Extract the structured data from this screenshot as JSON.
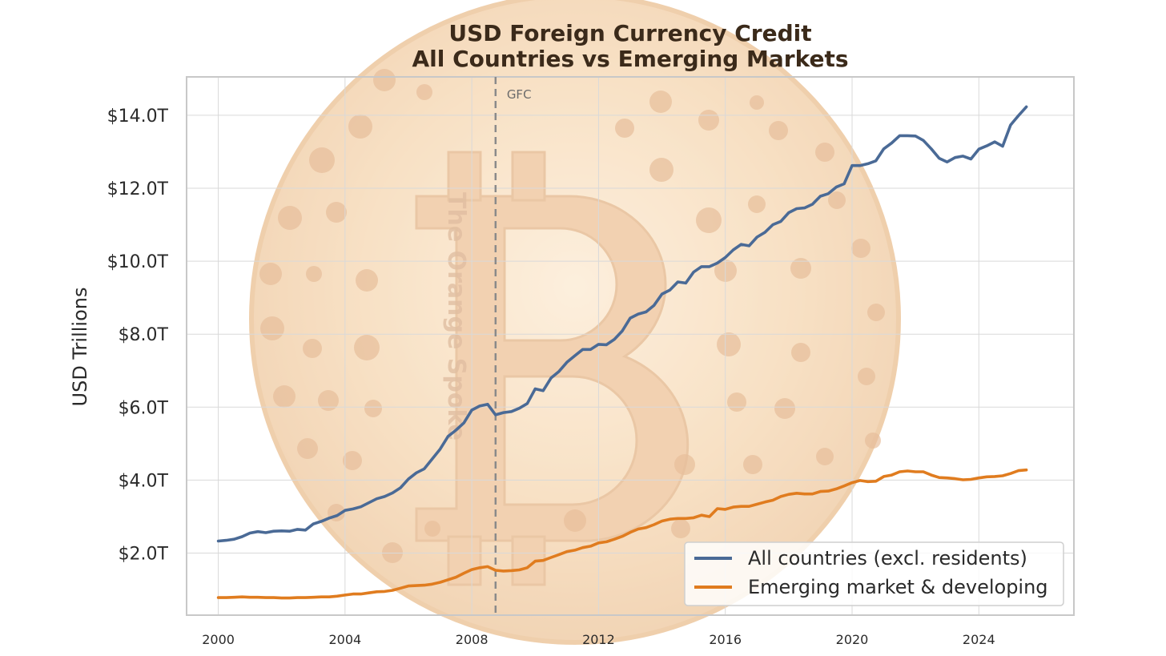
{
  "chart_data": {
    "type": "line",
    "title": "USD Foreign Currency Credit",
    "subtitle": "All Countries vs Emerging Markets",
    "xlabel": "",
    "ylabel": "USD Trillions",
    "xlim": [
      1999.0,
      2027.0
    ],
    "ylim": [
      0.3,
      15.05
    ],
    "grid": true,
    "legend_position": "bottom-right",
    "x_ticks": [
      "2000",
      "2004",
      "2008",
      "2012",
      "2016",
      "2020",
      "2024"
    ],
    "y_ticks": [
      "$2.0T",
      "$4.0T",
      "$6.0T",
      "$8.0T",
      "$10.0T",
      "$12.0T",
      "$14.0T"
    ],
    "annotations": [
      {
        "text": "GFC",
        "x": 2008.75
      }
    ],
    "watermark": "The Orange Spoke",
    "series": [
      {
        "name": "All countries (excl. residents)",
        "color": "#4a6a96",
        "points": [
          [
            2000.0,
            2.33
          ],
          [
            2000.25,
            2.35
          ],
          [
            2000.5,
            2.38
          ],
          [
            2000.75,
            2.45
          ],
          [
            2001.0,
            2.55
          ],
          [
            2001.25,
            2.59
          ],
          [
            2001.5,
            2.56
          ],
          [
            2001.75,
            2.6
          ],
          [
            2002.0,
            2.61
          ],
          [
            2002.25,
            2.6
          ],
          [
            2002.5,
            2.65
          ],
          [
            2002.75,
            2.63
          ],
          [
            2003.0,
            2.8
          ],
          [
            2003.25,
            2.87
          ],
          [
            2003.5,
            2.96
          ],
          [
            2003.75,
            3.03
          ],
          [
            2004.0,
            3.17
          ],
          [
            2004.25,
            3.21
          ],
          [
            2004.5,
            3.27
          ],
          [
            2004.75,
            3.38
          ],
          [
            2005.0,
            3.49
          ],
          [
            2005.25,
            3.55
          ],
          [
            2005.5,
            3.65
          ],
          [
            2005.75,
            3.79
          ],
          [
            2006.0,
            4.03
          ],
          [
            2006.25,
            4.2
          ],
          [
            2006.5,
            4.31
          ],
          [
            2006.75,
            4.58
          ],
          [
            2007.0,
            4.85
          ],
          [
            2007.25,
            5.2
          ],
          [
            2007.5,
            5.37
          ],
          [
            2007.75,
            5.57
          ],
          [
            2008.0,
            5.92
          ],
          [
            2008.25,
            6.03
          ],
          [
            2008.5,
            6.08
          ],
          [
            2008.75,
            5.79
          ],
          [
            2009.0,
            5.85
          ],
          [
            2009.25,
            5.88
          ],
          [
            2009.5,
            5.97
          ],
          [
            2009.75,
            6.1
          ],
          [
            2010.0,
            6.5
          ],
          [
            2010.25,
            6.45
          ],
          [
            2010.5,
            6.8
          ],
          [
            2010.75,
            6.98
          ],
          [
            2011.0,
            7.23
          ],
          [
            2011.25,
            7.41
          ],
          [
            2011.5,
            7.58
          ],
          [
            2011.75,
            7.58
          ],
          [
            2012.0,
            7.72
          ],
          [
            2012.25,
            7.71
          ],
          [
            2012.5,
            7.86
          ],
          [
            2012.75,
            8.09
          ],
          [
            2013.0,
            8.44
          ],
          [
            2013.25,
            8.55
          ],
          [
            2013.5,
            8.61
          ],
          [
            2013.75,
            8.79
          ],
          [
            2014.0,
            9.1
          ],
          [
            2014.25,
            9.21
          ],
          [
            2014.5,
            9.43
          ],
          [
            2014.75,
            9.4
          ],
          [
            2015.0,
            9.7
          ],
          [
            2015.25,
            9.85
          ],
          [
            2015.5,
            9.85
          ],
          [
            2015.75,
            9.95
          ],
          [
            2016.0,
            10.1
          ],
          [
            2016.25,
            10.31
          ],
          [
            2016.5,
            10.46
          ],
          [
            2016.75,
            10.42
          ],
          [
            2017.0,
            10.66
          ],
          [
            2017.25,
            10.79
          ],
          [
            2017.5,
            11.0
          ],
          [
            2017.75,
            11.09
          ],
          [
            2018.0,
            11.33
          ],
          [
            2018.25,
            11.44
          ],
          [
            2018.5,
            11.46
          ],
          [
            2018.75,
            11.56
          ],
          [
            2019.0,
            11.78
          ],
          [
            2019.25,
            11.85
          ],
          [
            2019.5,
            12.03
          ],
          [
            2019.75,
            12.12
          ],
          [
            2020.0,
            12.62
          ],
          [
            2020.25,
            12.62
          ],
          [
            2020.5,
            12.67
          ],
          [
            2020.75,
            12.75
          ],
          [
            2021.0,
            13.08
          ],
          [
            2021.25,
            13.24
          ],
          [
            2021.5,
            13.44
          ],
          [
            2021.75,
            13.44
          ],
          [
            2022.0,
            13.43
          ],
          [
            2022.25,
            13.31
          ],
          [
            2022.5,
            13.08
          ],
          [
            2022.75,
            12.82
          ],
          [
            2023.0,
            12.72
          ],
          [
            2023.25,
            12.84
          ],
          [
            2023.5,
            12.88
          ],
          [
            2023.75,
            12.8
          ],
          [
            2024.0,
            13.07
          ],
          [
            2024.25,
            13.16
          ],
          [
            2024.5,
            13.27
          ],
          [
            2024.75,
            13.15
          ],
          [
            2025.0,
            13.73
          ],
          [
            2025.25,
            13.99
          ],
          [
            2025.5,
            14.23
          ]
        ]
      },
      {
        "name": "Emerging market & developing",
        "color": "#e07c1f",
        "points": [
          [
            2000.0,
            0.78
          ],
          [
            2000.25,
            0.78
          ],
          [
            2000.5,
            0.79
          ],
          [
            2000.75,
            0.8
          ],
          [
            2001.0,
            0.79
          ],
          [
            2001.25,
            0.79
          ],
          [
            2001.5,
            0.78
          ],
          [
            2001.75,
            0.78
          ],
          [
            2002.0,
            0.77
          ],
          [
            2002.25,
            0.77
          ],
          [
            2002.5,
            0.78
          ],
          [
            2002.75,
            0.78
          ],
          [
            2003.0,
            0.79
          ],
          [
            2003.25,
            0.8
          ],
          [
            2003.5,
            0.8
          ],
          [
            2003.75,
            0.82
          ],
          [
            2004.0,
            0.85
          ],
          [
            2004.25,
            0.88
          ],
          [
            2004.5,
            0.88
          ],
          [
            2004.75,
            0.91
          ],
          [
            2005.0,
            0.94
          ],
          [
            2005.25,
            0.95
          ],
          [
            2005.5,
            0.98
          ],
          [
            2005.75,
            1.04
          ],
          [
            2006.0,
            1.1
          ],
          [
            2006.25,
            1.11
          ],
          [
            2006.5,
            1.12
          ],
          [
            2006.75,
            1.15
          ],
          [
            2007.0,
            1.2
          ],
          [
            2007.25,
            1.27
          ],
          [
            2007.5,
            1.34
          ],
          [
            2007.75,
            1.45
          ],
          [
            2008.0,
            1.55
          ],
          [
            2008.25,
            1.6
          ],
          [
            2008.5,
            1.63
          ],
          [
            2008.75,
            1.53
          ],
          [
            2009.0,
            1.51
          ],
          [
            2009.25,
            1.52
          ],
          [
            2009.5,
            1.54
          ],
          [
            2009.75,
            1.6
          ],
          [
            2010.0,
            1.78
          ],
          [
            2010.25,
            1.8
          ],
          [
            2010.5,
            1.88
          ],
          [
            2010.75,
            1.96
          ],
          [
            2011.0,
            2.04
          ],
          [
            2011.25,
            2.08
          ],
          [
            2011.5,
            2.15
          ],
          [
            2011.75,
            2.19
          ],
          [
            2012.0,
            2.28
          ],
          [
            2012.25,
            2.31
          ],
          [
            2012.5,
            2.38
          ],
          [
            2012.75,
            2.46
          ],
          [
            2013.0,
            2.57
          ],
          [
            2013.25,
            2.66
          ],
          [
            2013.5,
            2.7
          ],
          [
            2013.75,
            2.78
          ],
          [
            2014.0,
            2.88
          ],
          [
            2014.25,
            2.93
          ],
          [
            2014.5,
            2.95
          ],
          [
            2014.75,
            2.95
          ],
          [
            2015.0,
            2.97
          ],
          [
            2015.25,
            3.04
          ],
          [
            2015.5,
            3.0
          ],
          [
            2015.75,
            3.22
          ],
          [
            2016.0,
            3.2
          ],
          [
            2016.25,
            3.26
          ],
          [
            2016.5,
            3.28
          ],
          [
            2016.75,
            3.28
          ],
          [
            2017.0,
            3.34
          ],
          [
            2017.25,
            3.4
          ],
          [
            2017.5,
            3.45
          ],
          [
            2017.75,
            3.55
          ],
          [
            2018.0,
            3.61
          ],
          [
            2018.25,
            3.64
          ],
          [
            2018.5,
            3.62
          ],
          [
            2018.75,
            3.62
          ],
          [
            2019.0,
            3.69
          ],
          [
            2019.25,
            3.7
          ],
          [
            2019.5,
            3.76
          ],
          [
            2019.75,
            3.84
          ],
          [
            2020.0,
            3.93
          ],
          [
            2020.25,
            3.99
          ],
          [
            2020.5,
            3.96
          ],
          [
            2020.75,
            3.97
          ],
          [
            2021.0,
            4.1
          ],
          [
            2021.25,
            4.14
          ],
          [
            2021.5,
            4.23
          ],
          [
            2021.75,
            4.25
          ],
          [
            2022.0,
            4.23
          ],
          [
            2022.25,
            4.23
          ],
          [
            2022.5,
            4.14
          ],
          [
            2022.75,
            4.07
          ],
          [
            2023.0,
            4.06
          ],
          [
            2023.25,
            4.04
          ],
          [
            2023.5,
            4.01
          ],
          [
            2023.75,
            4.02
          ],
          [
            2024.0,
            4.06
          ],
          [
            2024.25,
            4.09
          ],
          [
            2024.5,
            4.1
          ],
          [
            2024.75,
            4.12
          ],
          [
            2025.0,
            4.18
          ],
          [
            2025.25,
            4.26
          ],
          [
            2025.5,
            4.28
          ]
        ]
      }
    ]
  }
}
